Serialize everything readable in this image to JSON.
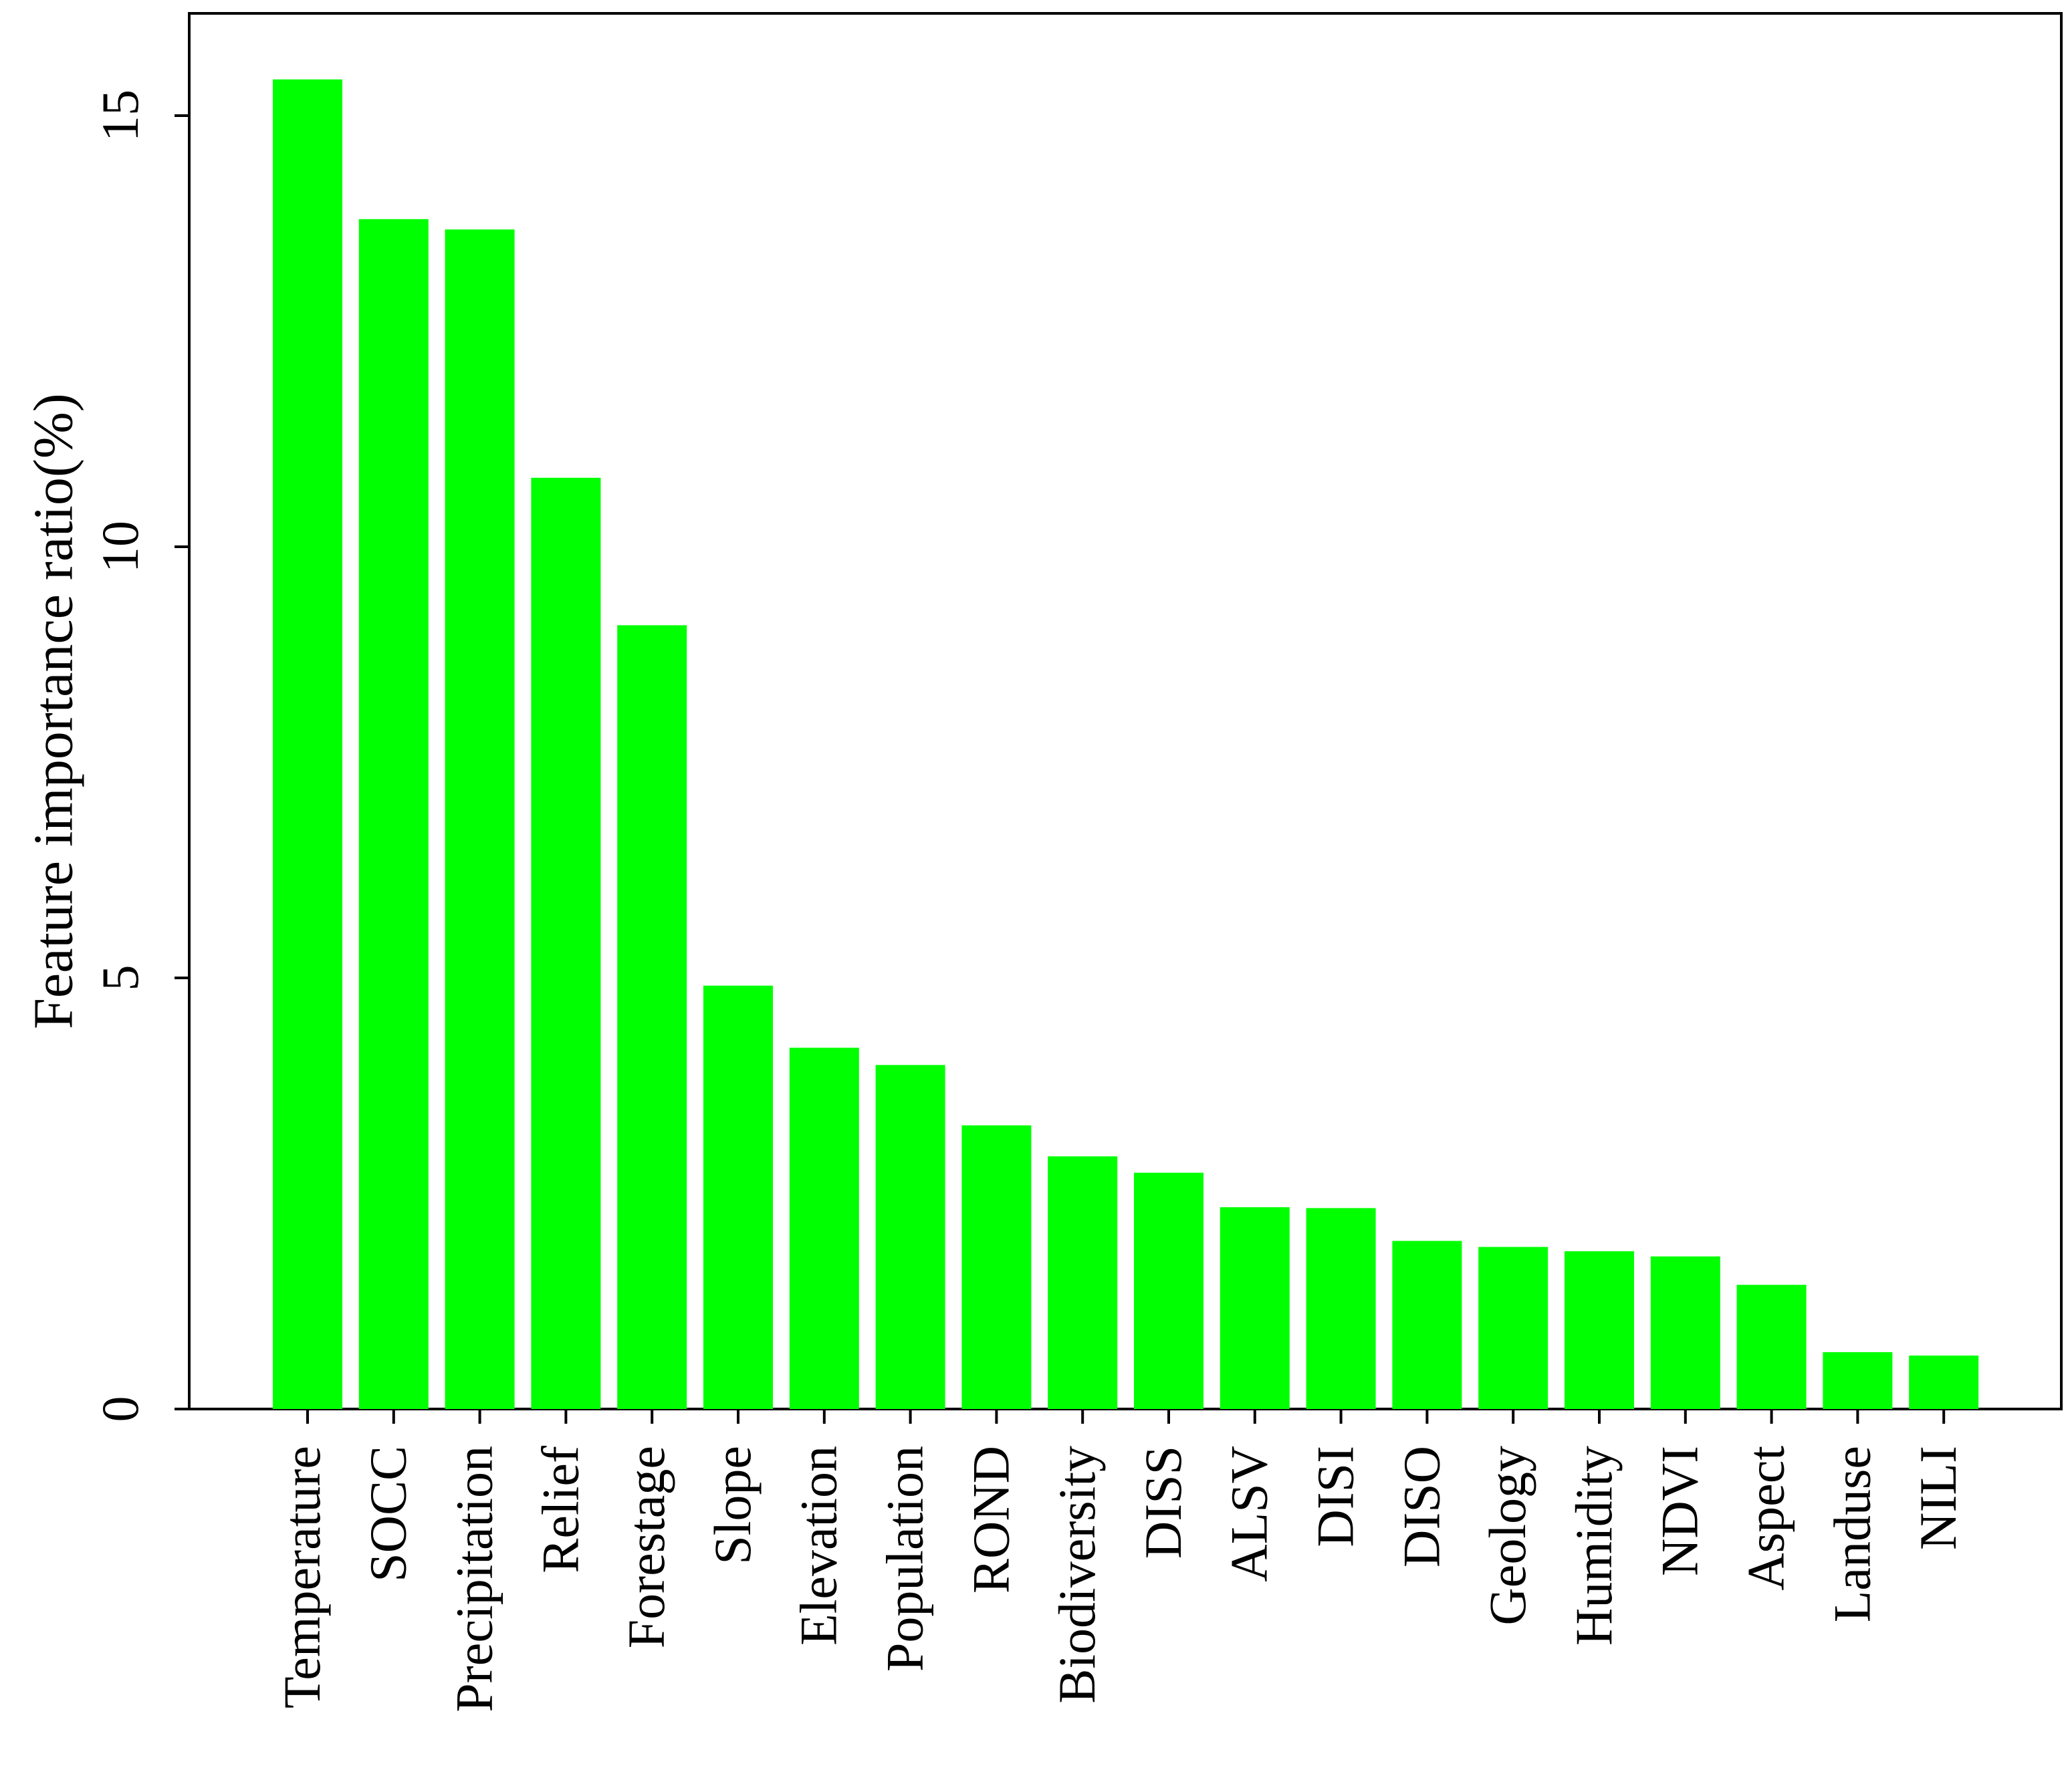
{
  "chart_data": {
    "type": "bar",
    "title": "",
    "xlabel": "",
    "ylabel": "Feature importance ratio(%)",
    "ylim": [
      0,
      15.2
    ],
    "yticks": [
      0,
      5,
      10,
      15
    ],
    "grid": false,
    "legend": "none",
    "bar_color": "#00ff00",
    "categories": [
      "Temperature",
      "SOCC",
      "Precipitation",
      "Relief",
      "Forestage",
      "Slope",
      "Elevation",
      "Population",
      "ROND",
      "Biodiversity",
      "DISS",
      "ALSV",
      "DISI",
      "DISO",
      "Geology",
      "Humidity",
      "NDVI",
      "Aspect",
      "Landuse",
      "NILI"
    ],
    "values": [
      15.42,
      13.8,
      13.68,
      10.8,
      9.09,
      4.91,
      4.19,
      3.99,
      3.29,
      2.93,
      2.74,
      2.34,
      2.33,
      1.95,
      1.88,
      1.83,
      1.77,
      1.44,
      0.66,
      0.62
    ]
  }
}
